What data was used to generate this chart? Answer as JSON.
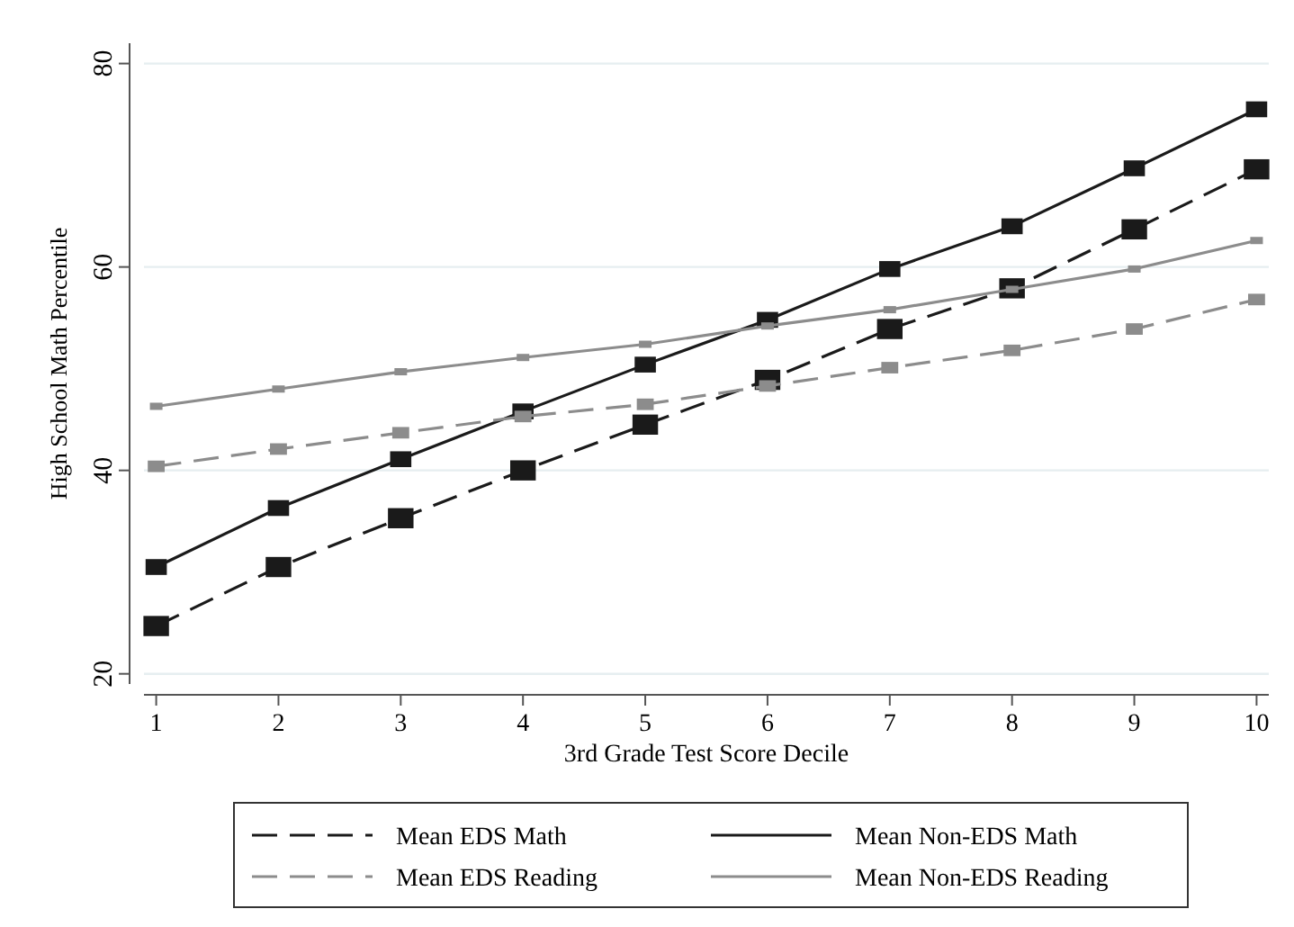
{
  "chart_data": {
    "type": "line",
    "xlabel": "3rd Grade Test Score Decile",
    "ylabel": "High School Math Percentile",
    "x": [
      1,
      2,
      3,
      4,
      5,
      6,
      7,
      8,
      9,
      10
    ],
    "xlim": [
      0.9,
      10.1
    ],
    "xticks": [
      1,
      2,
      3,
      4,
      5,
      6,
      7,
      8,
      9,
      10
    ],
    "ylim": [
      19,
      82
    ],
    "yticks": [
      20,
      40,
      60,
      80
    ],
    "grid": "y",
    "legend": "bottom",
    "marker": "square",
    "series": [
      {
        "name": "Mean EDS Math",
        "color": "#1a1a1a",
        "line_style": "dashed",
        "values": [
          24.7,
          30.5,
          35.3,
          40.0,
          44.5,
          48.9,
          53.9,
          57.9,
          63.7,
          69.6
        ]
      },
      {
        "name": "Mean Non-EDS Math",
        "color": "#1a1a1a",
        "line_style": "solid",
        "values": [
          30.5,
          36.3,
          41.1,
          45.8,
          50.4,
          54.8,
          59.8,
          64.0,
          69.7,
          75.5
        ]
      },
      {
        "name": "Mean EDS Reading",
        "color": "#8c8c8c",
        "line_style": "dashed",
        "values": [
          40.4,
          42.1,
          43.7,
          45.3,
          46.5,
          48.3,
          50.1,
          51.8,
          53.9,
          56.8
        ]
      },
      {
        "name": "Mean Non-EDS Reading",
        "color": "#8c8c8c",
        "line_style": "solid",
        "values": [
          46.3,
          48.0,
          49.7,
          51.1,
          52.4,
          54.2,
          55.8,
          57.8,
          59.8,
          62.6
        ]
      }
    ]
  }
}
